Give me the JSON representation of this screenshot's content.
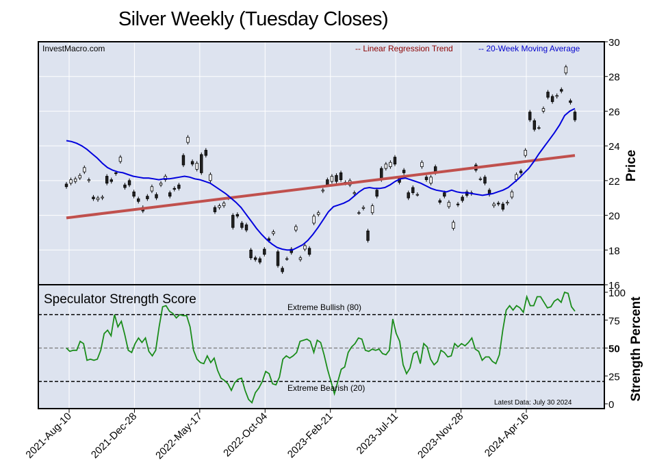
{
  "title": "Silver Weekly (Tuesday Closes)",
  "chart_data": [
    {
      "type": "candlestick",
      "watermark": "InvestMacro.com",
      "ylabel": "Price",
      "ylim": [
        16,
        30
      ],
      "yticks": [
        16,
        18,
        20,
        22,
        24,
        26,
        28,
        30
      ],
      "x_tick_labels": [
        "2021-Aug-10",
        "2021-Dec-28",
        "2022-May-17",
        "2022-Oct-04",
        "2023-Feb-21",
        "2023-Jul-11",
        "2023-Nov-28",
        "2024-Apr-16"
      ],
      "x_range": [
        "2021-Jul-06",
        "2024-Jul-30"
      ],
      "legend": [
        {
          "label": "-- Linear Regression Trend",
          "color": "#8b0000"
        },
        {
          "label": "-- 20-Week Moving Average",
          "color": "#0000cc"
        }
      ],
      "regression_trend": {
        "start": 19.85,
        "end": 23.45,
        "color": "#c0504d"
      },
      "moving_average": [
        24.3,
        24.25,
        24.15,
        24.0,
        23.8,
        23.55,
        23.3,
        23.0,
        22.75,
        22.6,
        22.5,
        22.45,
        22.35,
        22.25,
        22.2,
        22.15,
        22.15,
        22.1,
        22.05,
        22.1,
        22.1,
        22.15,
        22.2,
        22.25,
        22.2,
        22.1,
        22.05,
        21.95,
        21.85,
        21.65,
        21.45,
        21.25,
        21.0,
        20.75,
        20.45,
        20.05,
        19.65,
        19.25,
        18.9,
        18.6,
        18.35,
        18.15,
        18.05,
        18.0,
        18.0,
        18.15,
        18.3,
        18.55,
        18.9,
        19.3,
        19.75,
        20.2,
        20.5,
        20.6,
        20.7,
        20.85,
        21.1,
        21.35,
        21.55,
        21.6,
        21.55,
        21.55,
        21.6,
        21.75,
        21.95,
        22.1,
        22.15,
        22.05,
        21.95,
        21.85,
        21.7,
        21.55,
        21.45,
        21.4,
        21.35,
        21.45,
        21.35,
        21.3,
        21.3,
        21.25,
        21.2,
        21.15,
        21.2,
        21.25,
        21.35,
        21.45,
        21.6,
        21.85,
        22.1,
        22.4,
        22.7,
        23.1,
        23.55,
        23.95,
        24.35,
        24.75,
        25.2,
        25.75,
        26.0,
        26.15
      ],
      "candles": [
        [
          21.8,
          21.65
        ],
        [
          21.85,
          22.05
        ],
        [
          21.95,
          22.1
        ],
        [
          22.15,
          22.3
        ],
        [
          22.5,
          22.75
        ],
        [
          22.0,
          22.05
        ],
        [
          21.05,
          20.95
        ],
        [
          20.9,
          21.0
        ],
        [
          21.0,
          21.05
        ],
        [
          22.25,
          21.85
        ],
        [
          22.05,
          21.95
        ],
        [
          22.45,
          22.4
        ],
        [
          23.1,
          23.35
        ],
        [
          21.75,
          21.6
        ],
        [
          22.0,
          21.75
        ],
        [
          21.35,
          21.1
        ],
        [
          20.95,
          20.8
        ],
        [
          20.45,
          20.25
        ],
        [
          21.1,
          20.95
        ],
        [
          21.4,
          21.65
        ],
        [
          21.2,
          21.0
        ],
        [
          21.75,
          21.85
        ],
        [
          22.05,
          22.25
        ],
        [
          21.3,
          21.1
        ],
        [
          21.55,
          21.5
        ],
        [
          21.75,
          21.55
        ],
        [
          23.45,
          22.9
        ],
        [
          24.2,
          24.5
        ],
        [
          23.1,
          22.95
        ],
        [
          22.65,
          23.0
        ],
        [
          23.5,
          22.45
        ],
        [
          23.75,
          23.45
        ],
        [
          22.0,
          22.35
        ],
        [
          20.45,
          20.2
        ],
        [
          20.45,
          20.55
        ],
        [
          20.55,
          20.7
        ],
        [
          21.0,
          21.05
        ],
        [
          20.0,
          19.3
        ],
        [
          20.05,
          19.95
        ],
        [
          19.55,
          19.3
        ],
        [
          19.45,
          19.15
        ],
        [
          18.0,
          17.55
        ],
        [
          17.55,
          17.45
        ],
        [
          17.5,
          17.3
        ],
        [
          18.05,
          17.75
        ],
        [
          18.65,
          18.55
        ],
        [
          18.95,
          19.05
        ],
        [
          17.9,
          17.1
        ],
        [
          16.95,
          16.75
        ],
        [
          17.5,
          17.5
        ],
        [
          18.05,
          17.85
        ],
        [
          19.15,
          19.35
        ],
        [
          17.45,
          17.55
        ],
        [
          18.05,
          18.25
        ],
        [
          18.1,
          17.75
        ],
        [
          19.55,
          19.95
        ],
        [
          20.05,
          20.15
        ],
        [
          21.4,
          21.45
        ],
        [
          22.05,
          21.75
        ],
        [
          21.95,
          22.25
        ],
        [
          22.3,
          21.95
        ],
        [
          22.45,
          22.05
        ],
        [
          21.9,
          21.85
        ],
        [
          21.75,
          22.0
        ],
        [
          21.25,
          21.3
        ],
        [
          20.15,
          20.15
        ],
        [
          20.4,
          20.45
        ],
        [
          19.1,
          18.55
        ],
        [
          20.15,
          20.55
        ],
        [
          21.45,
          21.1
        ],
        [
          22.7,
          22.05
        ],
        [
          22.7,
          22.95
        ],
        [
          22.8,
          23.05
        ],
        [
          23.35,
          22.95
        ],
        [
          22.15,
          21.9
        ],
        [
          22.6,
          22.45
        ],
        [
          21.3,
          21.0
        ],
        [
          21.6,
          21.3
        ],
        [
          21.2,
          21.2
        ],
        [
          22.8,
          23.05
        ],
        [
          22.2,
          22.05
        ],
        [
          21.85,
          22.2
        ],
        [
          22.8,
          22.45
        ],
        [
          20.85,
          20.75
        ],
        [
          21.3,
          21.1
        ],
        [
          20.5,
          20.75
        ],
        [
          19.25,
          19.6
        ],
        [
          20.65,
          20.6
        ],
        [
          21.05,
          20.85
        ],
        [
          21.35,
          21.15
        ],
        [
          21.25,
          21.3
        ],
        [
          22.9,
          22.6
        ],
        [
          22.1,
          22.1
        ],
        [
          22.2,
          21.85
        ],
        [
          21.45,
          21.2
        ],
        [
          20.55,
          20.65
        ],
        [
          20.7,
          20.65
        ],
        [
          20.65,
          20.35
        ],
        [
          20.7,
          20.75
        ],
        [
          21.05,
          21.35
        ],
        [
          22.05,
          22.35
        ],
        [
          22.55,
          22.45
        ],
        [
          23.45,
          23.75
        ],
        [
          25.95,
          25.5
        ],
        [
          25.45,
          24.95
        ],
        [
          25.05,
          25.05
        ],
        [
          26.0,
          26.15
        ],
        [
          27.1,
          26.8
        ],
        [
          26.85,
          26.55
        ],
        [
          26.85,
          26.9
        ],
        [
          27.25,
          27.15
        ],
        [
          28.2,
          28.55
        ],
        [
          26.6,
          26.5
        ],
        [
          25.95,
          25.5
        ]
      ]
    },
    {
      "type": "line",
      "title": "Speculator Strength Score",
      "ylabel": "Strength Percent",
      "ylim": [
        0,
        100
      ],
      "yticks": [
        0,
        25,
        50,
        75,
        100
      ],
      "reference_lines": [
        {
          "value": 80,
          "label": "Extreme Bullish (80)"
        },
        {
          "value": 50,
          "label": ""
        },
        {
          "value": 20,
          "label": "Extreme Bearish (20)"
        }
      ],
      "footnote": "Latest Data: July 30 2024",
      "color": "#1a8c1a",
      "values": [
        50,
        47,
        48,
        48,
        56,
        54,
        39,
        40,
        39,
        40,
        48,
        63,
        66,
        61,
        80,
        69,
        74,
        62,
        48,
        46,
        54,
        59,
        55,
        59,
        47,
        43,
        48,
        69,
        87,
        88,
        83,
        81,
        77,
        80,
        79,
        79,
        69,
        48,
        40,
        37,
        36,
        43,
        37,
        41,
        30,
        23,
        21,
        18,
        12,
        19,
        22,
        23,
        12,
        4,
        1,
        10,
        14,
        20,
        29,
        27,
        18,
        17,
        24,
        40,
        43,
        41,
        43,
        46,
        56,
        57,
        58,
        56,
        46,
        57,
        55,
        44,
        31,
        20,
        9,
        20,
        31,
        33,
        46,
        51,
        54,
        59,
        58,
        48,
        47,
        49,
        48,
        49,
        45,
        44,
        48,
        76,
        63,
        56,
        35,
        27,
        32,
        45,
        47,
        36,
        54,
        51,
        40,
        35,
        38,
        48,
        46,
        42,
        43,
        54,
        51,
        54,
        52,
        55,
        59,
        49,
        47,
        39,
        42,
        42,
        38,
        36,
        44,
        66,
        84,
        88,
        84,
        88,
        86,
        82,
        96,
        88,
        88,
        96,
        96,
        91,
        86,
        87,
        92,
        94,
        91,
        100,
        99,
        87,
        83
      ]
    }
  ]
}
